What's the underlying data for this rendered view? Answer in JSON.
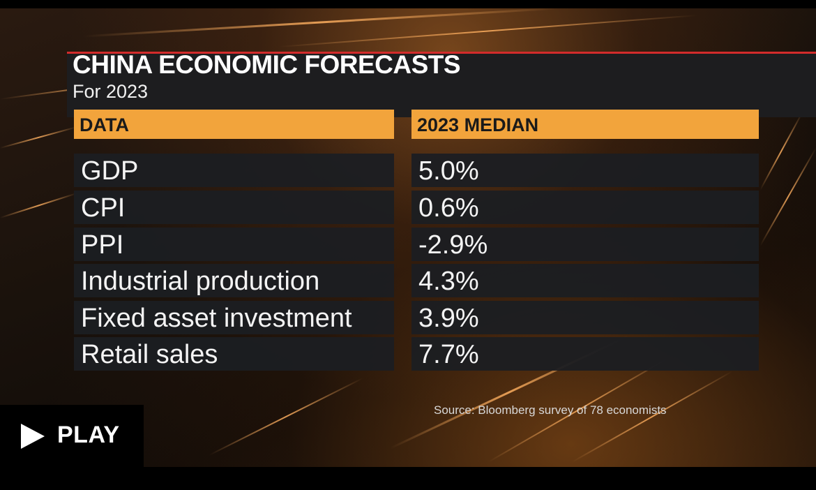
{
  "graphic": {
    "title": "CHINA ECONOMIC FORECASTS",
    "subtitle": "For 2023",
    "columns": [
      "DATA",
      "2023 MEDIAN"
    ],
    "rows": [
      {
        "label": "GDP",
        "value": "5.0%"
      },
      {
        "label": "CPI",
        "value": "0.6%"
      },
      {
        "label": "PPI",
        "value": "-2.9%"
      },
      {
        "label": "Industrial production",
        "value": "4.3%"
      },
      {
        "label": "Fixed asset investment",
        "value": "3.9%"
      },
      {
        "label": "Retail sales",
        "value": "7.7%"
      }
    ],
    "source": "Source: Bloomberg survey of 78 economists"
  },
  "player": {
    "play_label": "PLAY",
    "play_icon": "play-icon"
  },
  "colors": {
    "accent_bar": "#f2a43c",
    "header_rule": "#d32b2b",
    "panel": "#1d1d1f",
    "row_bg": "#1c1e22"
  }
}
